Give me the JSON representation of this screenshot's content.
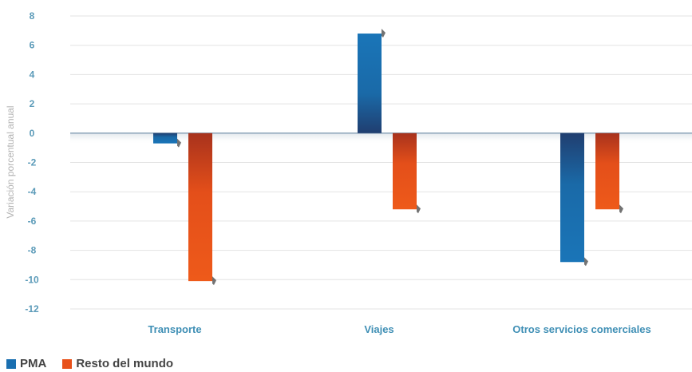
{
  "chart_data": {
    "type": "bar",
    "categories": [
      "Transporte",
      "Viajes",
      "Otros servicios comerciales"
    ],
    "series": [
      {
        "name": "PMA",
        "values": [
          -0.7,
          6.8,
          -8.8
        ],
        "color": "#1a6fb0"
      },
      {
        "name": "Resto del mundo",
        "values": [
          -10.1,
          -5.2,
          -5.2
        ],
        "color": "#e8511a"
      }
    ],
    "ylabel": "Variación porcentual anual",
    "ylim": [
      -12,
      8
    ],
    "yticks": [
      8,
      6,
      4,
      2,
      0,
      -2,
      -4,
      -6,
      -8,
      -10,
      -12
    ],
    "grid": true,
    "legend_position": "bottom-left",
    "colors": {
      "tick": "#5a9ab8",
      "category": "#3f8fb5",
      "grid": "#e3e3e3",
      "zero_line": "#8aa3b8"
    }
  }
}
